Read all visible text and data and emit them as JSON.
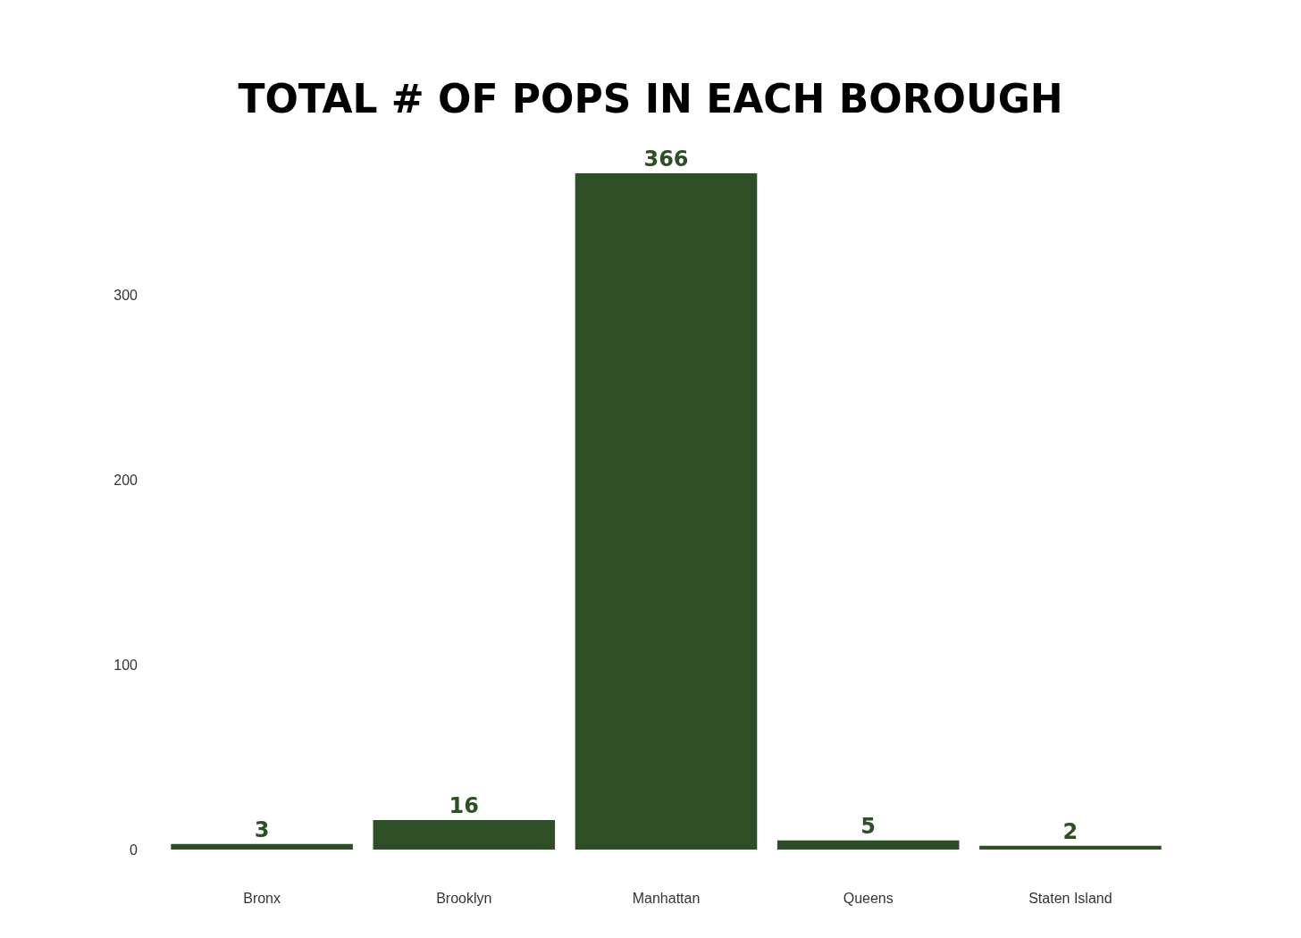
{
  "chart_data": {
    "type": "bar",
    "title": "TOTAL # OF POPS IN EACH BOROUGH",
    "categories": [
      "Bronx",
      "Brooklyn",
      "Manhattan",
      "Queens",
      "Staten Island"
    ],
    "values": [
      3,
      16,
      366,
      5,
      2
    ],
    "color": "#2e4f26",
    "ylim": [
      0,
      366
    ],
    "yticks": [
      0,
      100,
      200,
      300
    ],
    "grid": false,
    "data_labels": true
  }
}
